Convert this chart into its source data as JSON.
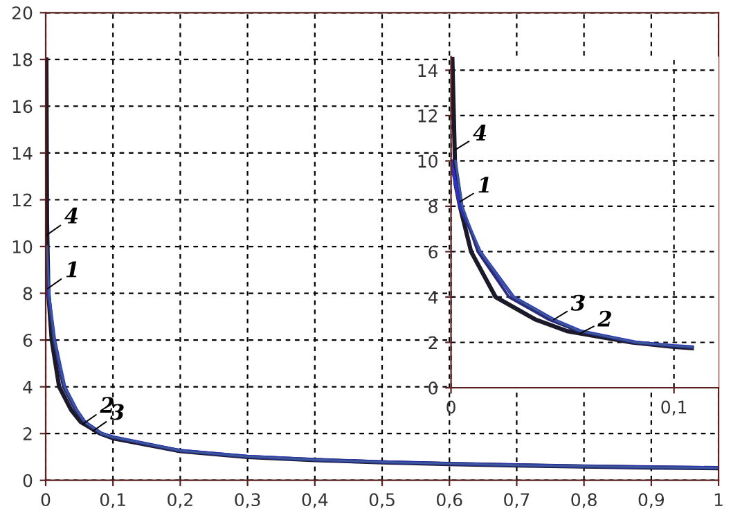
{
  "chart_data": [
    {
      "type": "line",
      "xlim": [
        0,
        1
      ],
      "ylim": [
        0,
        20
      ],
      "xticks": [
        0,
        {
          "value": 0.1,
          "label": "0,1"
        },
        {
          "value": 0.2,
          "label": "0,2"
        },
        {
          "value": 0.3,
          "label": "0,3"
        },
        {
          "value": 0.4,
          "label": "0,4"
        },
        {
          "value": 0.5,
          "label": "0,5"
        },
        {
          "value": 0.6,
          "label": "0,6"
        },
        {
          "value": 0.7,
          "label": "0,7"
        },
        {
          "value": 0.8,
          "label": "0,8"
        },
        {
          "value": 0.9,
          "label": "0,9"
        },
        1
      ],
      "yticks": [
        0,
        2,
        4,
        6,
        8,
        10,
        12,
        14,
        16,
        18,
        20
      ],
      "grid": true,
      "series": [
        {
          "color": "#1a1a2a",
          "x": [
            0.001,
            0.002,
            0.004,
            0.009,
            0.02,
            0.038,
            0.052,
            0.081,
            0.1,
            0.2,
            0.3,
            0.4,
            0.5,
            0.6,
            0.7,
            0.8,
            0.9,
            1.0
          ],
          "values": [
            18,
            11,
            8,
            6,
            4,
            3,
            2.5,
            2,
            1.8,
            1.25,
            1.0,
            0.87,
            0.77,
            0.7,
            0.64,
            0.59,
            0.55,
            0.52
          ]
        },
        {
          "color": "#3030c0",
          "x": [
            0,
            0.004,
            0.013,
            0.028,
            0.046,
            0.058,
            0.083,
            0.1,
            0.2,
            0.3,
            0.4,
            0.5,
            0.6,
            0.7,
            0.8,
            0.9,
            1.0
          ],
          "values": [
            10,
            8,
            6,
            4,
            3,
            2.5,
            2,
            1.85,
            1.27,
            1.02,
            0.88,
            0.78,
            0.71,
            0.65,
            0.6,
            0.56,
            0.53
          ]
        },
        {
          "color": "#2a2a80",
          "x": [
            0.002,
            0.005,
            0.012,
            0.026,
            0.044,
            0.057,
            0.082,
            0.1,
            0.2,
            0.3,
            0.4,
            0.5,
            0.6,
            0.7,
            0.8,
            0.9,
            1.0
          ],
          "values": [
            10,
            8,
            6,
            4,
            3,
            2.5,
            2,
            1.83,
            1.26,
            1.01,
            0.87,
            0.77,
            0.7,
            0.64,
            0.59,
            0.55,
            0.52
          ]
        },
        {
          "color": "#3a5a9a",
          "x": [
            0.002,
            0.005,
            0.013,
            0.028,
            0.046,
            0.058,
            0.083,
            0.1,
            0.2,
            0.3,
            0.4,
            0.5,
            0.6,
            0.7,
            0.8,
            0.9,
            1.0
          ],
          "values": [
            10,
            8,
            6,
            4,
            3,
            2.5,
            2,
            1.85,
            1.27,
            1.02,
            0.88,
            0.78,
            0.71,
            0.65,
            0.6,
            0.56,
            0.53
          ]
        }
      ],
      "annotations": [
        {
          "text": "4",
          "x": 0.002,
          "y": 10.5
        },
        {
          "text": "1",
          "x": 0.003,
          "y": 8.2
        },
        {
          "text": "2",
          "x": 0.055,
          "y": 2.4
        },
        {
          "text": "3",
          "x": 0.07,
          "y": 2.1
        }
      ]
    },
    {
      "type": "line",
      "xlim": [
        0,
        0.12
      ],
      "ylim": [
        0,
        14.6
      ],
      "xticks": [
        0,
        {
          "value": 0.1,
          "label": "0,1"
        }
      ],
      "yticks": [
        0,
        2,
        4,
        6,
        8,
        10,
        12,
        14
      ],
      "grid": true,
      "series": [
        {
          "color": "#1a1a2a",
          "x": [
            0.0006,
            0.002,
            0.004,
            0.009,
            0.02,
            0.038,
            0.052,
            0.081,
            0.1,
            0.108
          ],
          "values": [
            14.5,
            9,
            8,
            6,
            4,
            3,
            2.5,
            2,
            1.8,
            1.75
          ]
        },
        {
          "color": "#3030c0",
          "x": [
            0,
            0.004,
            0.013,
            0.028,
            0.046,
            0.058,
            0.083,
            0.1,
            0.108
          ],
          "values": [
            10,
            8,
            6,
            4,
            3,
            2.5,
            2,
            1.85,
            1.8
          ]
        },
        {
          "color": "#2a2a80",
          "x": [
            0.002,
            0.005,
            0.012,
            0.026,
            0.044,
            0.057,
            0.082,
            0.1,
            0.108
          ],
          "values": [
            10,
            8,
            6,
            4,
            3,
            2.5,
            2,
            1.83,
            1.78
          ]
        },
        {
          "color": "#3a5a9a",
          "x": [
            0.002,
            0.005,
            0.013,
            0.028,
            0.046,
            0.058,
            0.083,
            0.1,
            0.108
          ],
          "values": [
            10,
            8,
            6,
            4,
            3,
            2.5,
            2,
            1.85,
            1.8
          ]
        }
      ],
      "annotations": [
        {
          "text": "4",
          "x": 0.002,
          "y": 10.5
        },
        {
          "text": "1",
          "x": 0.004,
          "y": 8.2
        },
        {
          "text": "3",
          "x": 0.046,
          "y": 3.0
        },
        {
          "text": "2",
          "x": 0.058,
          "y": 2.4
        }
      ]
    }
  ]
}
